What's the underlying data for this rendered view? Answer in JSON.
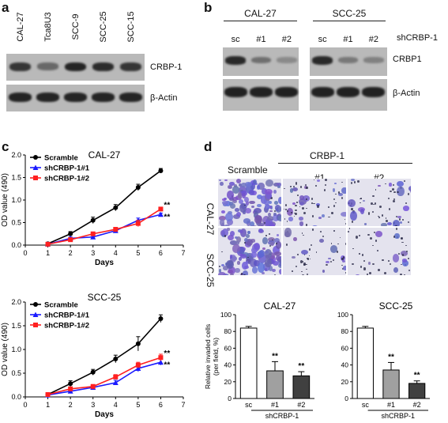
{
  "panels": {
    "a": "a",
    "b": "b",
    "c": "c",
    "d": "d"
  },
  "panel_a": {
    "lanes": [
      "CAL-27",
      "Tca8U3",
      "SCC-9",
      "SCC-25",
      "SCC-15"
    ],
    "rows": [
      "CRBP-1",
      "β-Actin"
    ],
    "crbp1_intensity": [
      0.75,
      0.45,
      0.85,
      0.8,
      0.75
    ],
    "actin_intensity": [
      0.85,
      0.85,
      0.85,
      0.85,
      0.85
    ]
  },
  "panel_b": {
    "groups": [
      "CAL-27",
      "SCC-25"
    ],
    "lanes": [
      "sc",
      "#1",
      "#2",
      "sc",
      "#1",
      "#2"
    ],
    "construct_label": "shCRBP-1",
    "rows": [
      "CRBP1",
      "β-Actin"
    ],
    "crbp1_intensity": [
      0.85,
      0.45,
      0.3,
      0.85,
      0.4,
      0.35
    ],
    "actin_intensity": [
      0.9,
      0.9,
      0.9,
      0.9,
      0.9,
      0.9
    ]
  },
  "chart_data": [
    {
      "type": "line",
      "title": "CAL-27",
      "xlabel": "Days",
      "ylabel": "OD value (490)",
      "xlim": [
        0,
        7
      ],
      "ylim": [
        0,
        2.0
      ],
      "xticks": [
        0,
        1,
        2,
        3,
        4,
        5,
        6,
        7
      ],
      "yticks": [
        0,
        0.5,
        1.0,
        1.5,
        2.0
      ],
      "x": [
        1,
        2,
        3,
        4,
        5,
        6
      ],
      "series": [
        {
          "name": "Scramble",
          "color": "#000000",
          "marker": "circle",
          "values": [
            0.03,
            0.25,
            0.55,
            0.83,
            1.28,
            1.65
          ],
          "err": [
            0.02,
            0.05,
            0.07,
            0.07,
            0.07,
            0.05
          ]
        },
        {
          "name": "shCRBP-1#1",
          "color": "#1a1aff",
          "marker": "triangle",
          "values": [
            0.02,
            0.15,
            0.18,
            0.32,
            0.55,
            0.68
          ],
          "err": [
            0.02,
            0.03,
            0.04,
            0.04,
            0.05,
            0.03
          ]
        },
        {
          "name": "shCRBP-1#2",
          "color": "#ff2020",
          "marker": "square",
          "values": [
            0.02,
            0.12,
            0.25,
            0.35,
            0.48,
            0.8
          ],
          "err": [
            0.02,
            0.03,
            0.04,
            0.04,
            0.07,
            0.03
          ]
        }
      ],
      "annotations": [
        "**",
        "**"
      ],
      "legend": "top-left"
    },
    {
      "type": "line",
      "title": "SCC-25",
      "xlabel": "Days",
      "ylabel": "OD value (490)",
      "xlim": [
        0,
        7
      ],
      "ylim": [
        0,
        2.0
      ],
      "xticks": [
        0,
        1,
        2,
        3,
        4,
        5,
        6,
        7
      ],
      "yticks": [
        0,
        0.5,
        1.0,
        1.5,
        2.0
      ],
      "x": [
        1,
        2,
        3,
        4,
        5,
        6
      ],
      "series": [
        {
          "name": "Scramble",
          "color": "#000000",
          "marker": "circle",
          "values": [
            0.05,
            0.28,
            0.52,
            0.8,
            1.12,
            1.65
          ],
          "err": [
            0.03,
            0.06,
            0.06,
            0.08,
            0.15,
            0.08
          ]
        },
        {
          "name": "shCRBP-1#1",
          "color": "#1a1aff",
          "marker": "triangle",
          "values": [
            0.04,
            0.12,
            0.2,
            0.3,
            0.6,
            0.73
          ],
          "err": [
            0.02,
            0.04,
            0.04,
            0.05,
            0.07,
            0.06
          ]
        },
        {
          "name": "shCRBP-1#2",
          "color": "#ff2020",
          "marker": "square",
          "values": [
            0.05,
            0.17,
            0.22,
            0.42,
            0.67,
            0.83
          ],
          "err": [
            0.02,
            0.04,
            0.04,
            0.05,
            0.06,
            0.07
          ]
        }
      ],
      "annotations": [
        "**",
        "**"
      ],
      "legend": "top-left"
    },
    {
      "type": "bar",
      "title": "CAL-27",
      "ylabel": "Relative invaded cells\n(per field, %)",
      "xlabel": "shCRBP-1",
      "categories": [
        "sc",
        "#1",
        "#2"
      ],
      "values": [
        84,
        33,
        27
      ],
      "err": [
        2,
        11,
        5
      ],
      "colors": [
        "#ffffff",
        "#a0a0a0",
        "#404040"
      ],
      "ylim": [
        0,
        100
      ],
      "yticks": [
        0,
        20,
        40,
        60,
        80,
        100
      ],
      "annotations": [
        "",
        "**",
        "**"
      ]
    },
    {
      "type": "bar",
      "title": "SCC-25",
      "xlabel": "shCRBP-1",
      "categories": [
        "sc",
        "#1",
        "#2"
      ],
      "values": [
        84,
        34,
        18
      ],
      "err": [
        2,
        9,
        3
      ],
      "colors": [
        "#ffffff",
        "#a0a0a0",
        "#404040"
      ],
      "ylim": [
        0,
        100
      ],
      "yticks": [
        0,
        20,
        40,
        60,
        80,
        100
      ],
      "annotations": [
        "",
        "**",
        "**"
      ]
    }
  ],
  "panel_d_images": {
    "header": "CRBP-1",
    "columns": [
      "Scramble",
      "#1",
      "#2"
    ],
    "rows": [
      "CAL-27",
      "SCC-25"
    ],
    "stain_density": [
      [
        0.9,
        0.35,
        0.3
      ],
      [
        0.85,
        0.15,
        0.12
      ]
    ]
  }
}
